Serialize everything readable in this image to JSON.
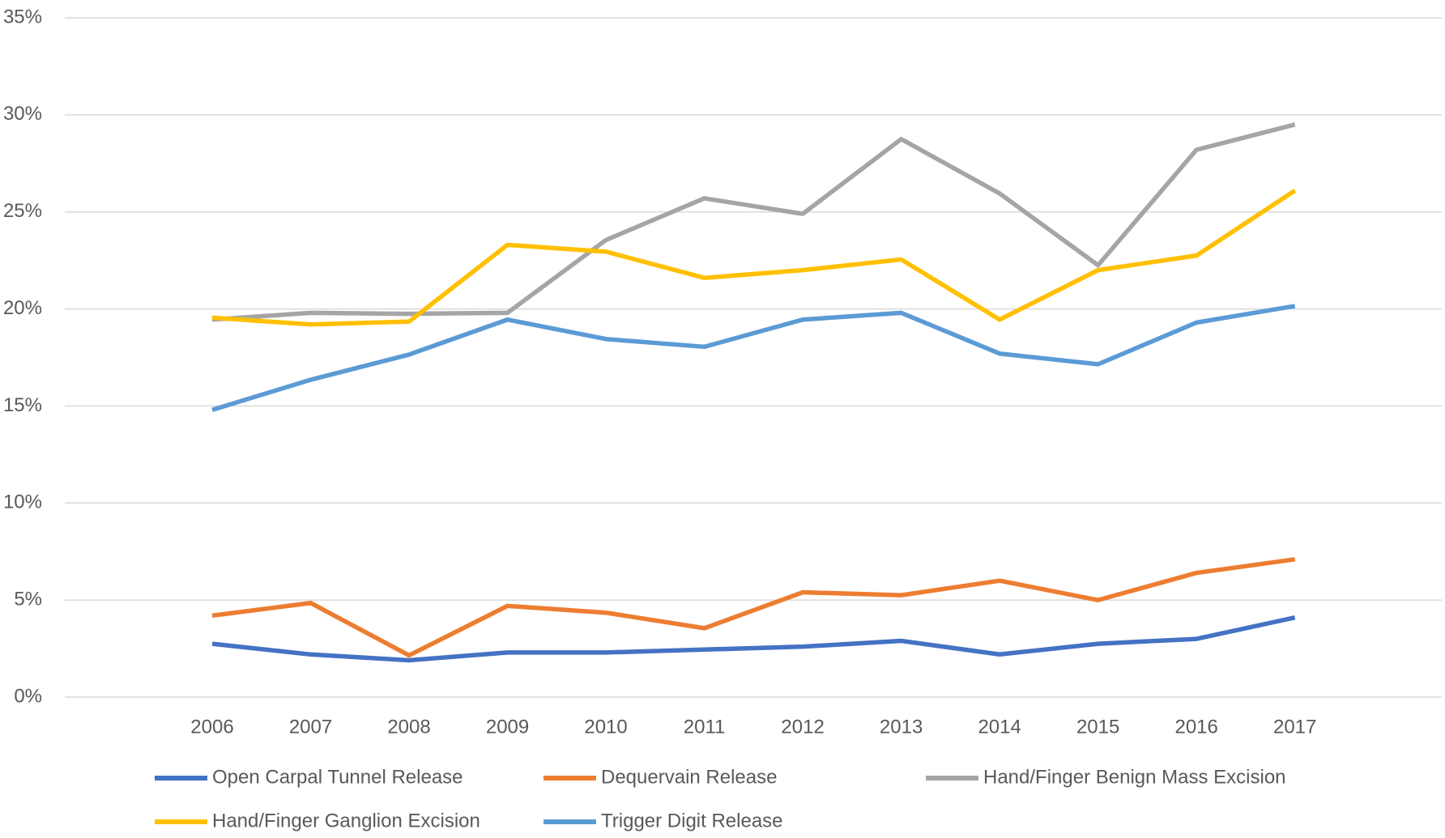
{
  "chart_data": {
    "type": "line",
    "categories": [
      "2006",
      "2007",
      "2008",
      "2009",
      "2010",
      "2011",
      "2012",
      "2013",
      "2014",
      "2015",
      "2016",
      "2017"
    ],
    "series": [
      {
        "name": "Open Carpal Tunnel Release",
        "color": "#4472c4",
        "values": [
          2.75,
          2.2,
          1.9,
          2.3,
          2.3,
          2.45,
          2.6,
          2.9,
          2.2,
          2.75,
          3.0,
          4.1
        ]
      },
      {
        "name": "Dequervain Release",
        "color": "#ed7d31",
        "values": [
          4.2,
          4.85,
          2.15,
          4.7,
          4.35,
          3.55,
          5.4,
          5.25,
          6.0,
          5.0,
          6.4,
          7.1
        ]
      },
      {
        "name": "Hand/Finger Benign Mass Excision",
        "color": "#a5a5a5",
        "values": [
          19.45,
          19.8,
          19.75,
          19.8,
          23.55,
          25.7,
          24.9,
          28.75,
          25.95,
          22.25,
          28.2,
          29.5
        ]
      },
      {
        "name": "Hand/Finger Ganglion Excision",
        "color": "#ffc000",
        "values": [
          19.55,
          19.2,
          19.35,
          23.3,
          22.95,
          21.6,
          22.0,
          22.55,
          19.45,
          22.0,
          22.75,
          26.1
        ]
      },
      {
        "name": "Trigger Digit Release",
        "color": "#5b9bd5",
        "values": [
          14.8,
          16.35,
          17.65,
          19.45,
          18.45,
          18.05,
          19.45,
          19.8,
          17.7,
          17.15,
          19.3,
          20.15
        ]
      }
    ],
    "ylim": [
      0,
      35
    ],
    "yticks": [
      {
        "value": 0,
        "label": "0%"
      },
      {
        "value": 5,
        "label": "5%"
      },
      {
        "value": 10,
        "label": "10%"
      },
      {
        "value": 15,
        "label": "15%"
      },
      {
        "value": 20,
        "label": "20%"
      },
      {
        "value": 25,
        "label": "25%"
      },
      {
        "value": 30,
        "label": "30%"
      },
      {
        "value": 35,
        "label": "35%"
      }
    ],
    "grid": true,
    "legend": "bottom"
  }
}
